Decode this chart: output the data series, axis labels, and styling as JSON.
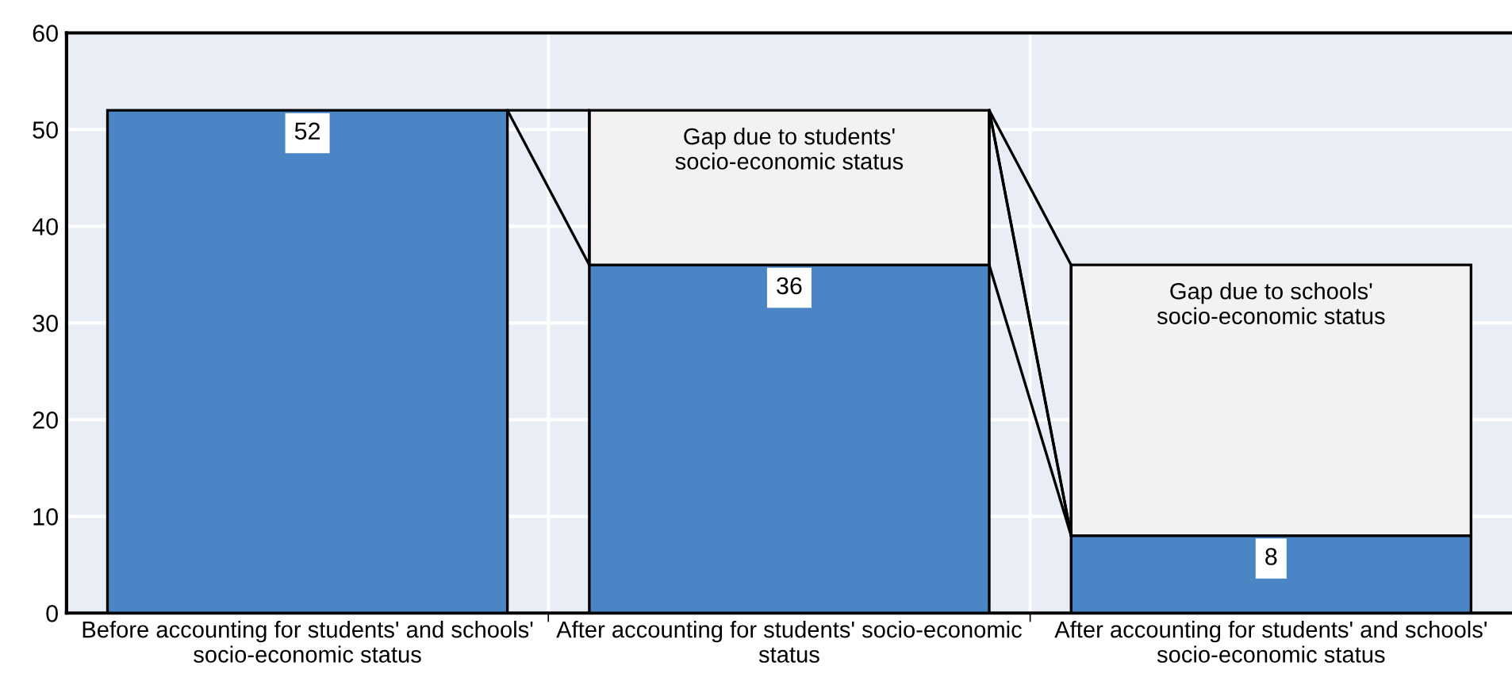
{
  "chart_data": {
    "type": "bar",
    "stacked": true,
    "categories": [
      "Before accounting for students' and schools' socio-economic status",
      "After accounting for students' socio-economic status",
      "After accounting for students' and schools' socio-economic status"
    ],
    "series": [
      {
        "color": "#4a86c5",
        "values": [
          52,
          36,
          8
        ],
        "data_labels": true
      },
      {
        "color": "#f2f2f2",
        "values": [
          null,
          16,
          28
        ]
      }
    ],
    "annotations": [
      "Gap due to students'\nsocio-economic status",
      "Gap due to schools'\nsocio-economic status"
    ],
    "ylim": [
      0,
      60
    ],
    "yticks": [
      0,
      10,
      20,
      30,
      40,
      50,
      60
    ],
    "grid": true
  }
}
